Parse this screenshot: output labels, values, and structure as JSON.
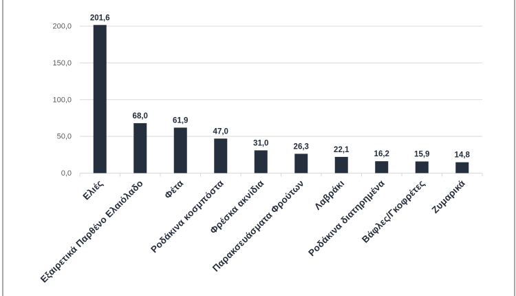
{
  "page": {
    "background_color": "#ffffff",
    "edge_line_color": "#a6a6a6"
  },
  "chart_data": {
    "type": "bar",
    "title": "",
    "xlabel": "",
    "ylabel": "",
    "categories": [
      "Ελιές",
      "Εξαιρετικά Παρθένο Ελαιόλαδο",
      "Φέτα",
      "Ροδάκινα κοσμπόστα",
      "Φρέσκα ακνίδια",
      "Παρακσευάσματα Φρούτων",
      "Λαβράκι",
      "Ροδάκινα διατηρημένα",
      "Βάφλες/Γκοφρέτες",
      "Ζυμαρικά"
    ],
    "values": [
      201.6,
      68.0,
      61.9,
      47.0,
      31.0,
      26.3,
      22.1,
      16.2,
      15.9,
      14.8
    ],
    "value_labels": [
      "201,6",
      "68,0",
      "61,9",
      "47,0",
      "31,0",
      "26,3",
      "22,1",
      "16,2",
      "15,9",
      "14,8"
    ],
    "y_axis": {
      "tick_values": [
        0,
        50,
        100,
        150,
        200
      ],
      "tick_labels": [
        "0,0",
        "50,0",
        "100,0",
        "150,0",
        "200,0"
      ],
      "ylim": [
        0,
        200
      ]
    },
    "grid": true,
    "legend": false,
    "decimal_separator": ",",
    "style": {
      "bar_color": "#262f3e",
      "gridline_color": "#d9d9d9",
      "axis_line_color": "#d9d9d9",
      "y_tick_label_color": "#595959",
      "data_label_color": "#242c3a",
      "category_label_color": "#242c3a"
    }
  }
}
